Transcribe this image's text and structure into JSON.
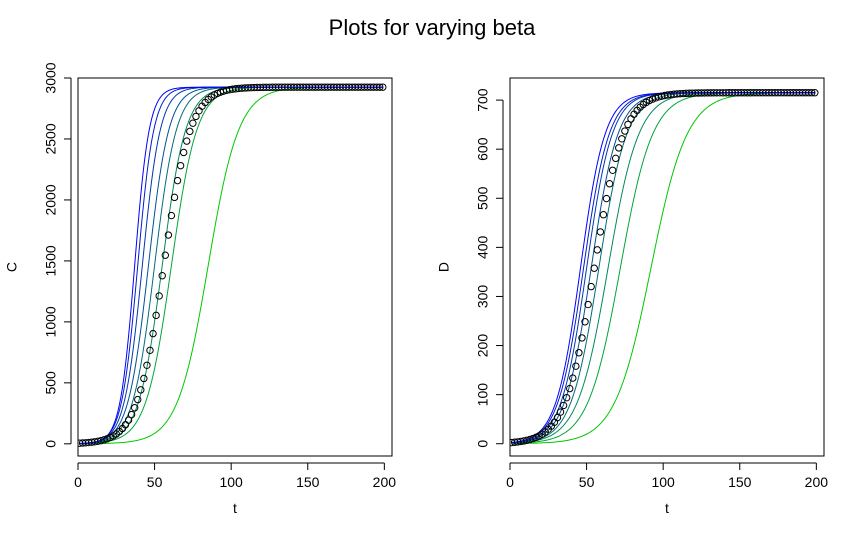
{
  "title": "Plots for varying beta",
  "series_colors": [
    "#00c800",
    "#00a43c",
    "#008a5a",
    "#006c78",
    "#005094",
    "#0036b0",
    "#001ccc",
    "#0000ff"
  ],
  "chart_data": [
    {
      "type": "line",
      "xlabel": "t",
      "ylabel": "C",
      "xlim": [
        0,
        205
      ],
      "ylim": [
        -100,
        3000
      ],
      "x_ticks": [
        0,
        50,
        100,
        150,
        200
      ],
      "y_ticks": [
        0,
        500,
        1000,
        1500,
        2000,
        2500,
        3000
      ],
      "grid": false,
      "curves": {
        "model": "logistic",
        "plateau": 2925,
        "start": 0,
        "t_range": [
          1,
          199
        ],
        "midpoints": [
          85,
          61,
          55,
          50,
          46,
          42,
          39,
          37
        ],
        "slopes": [
          0.1,
          0.12,
          0.13,
          0.14,
          0.15,
          0.17,
          0.19,
          0.21
        ]
      },
      "observed": {
        "marker": "open-circle",
        "x_from": 1,
        "x_to": 199,
        "x_step": 2,
        "plateau": 2925,
        "midpoint": 56,
        "slope": 0.115
      }
    },
    {
      "type": "line",
      "xlabel": "t",
      "ylabel": "D",
      "xlim": [
        0,
        205
      ],
      "ylim": [
        -25,
        745
      ],
      "x_ticks": [
        0,
        50,
        100,
        150,
        200
      ],
      "y_ticks": [
        0,
        100,
        200,
        300,
        400,
        500,
        600,
        700
      ],
      "grid": false,
      "curves": {
        "model": "logistic",
        "plateau": 715,
        "start": 0,
        "t_range": [
          1,
          199
        ],
        "midpoints": [
          92,
          72,
          64,
          58,
          53,
          50,
          48,
          46
        ],
        "slopes": [
          0.085,
          0.095,
          0.1,
          0.11,
          0.115,
          0.12,
          0.12,
          0.125
        ]
      },
      "observed": {
        "marker": "open-circle",
        "x_from": 1,
        "x_to": 199,
        "x_step": 2,
        "plateau": 715,
        "midpoint": 55,
        "slope": 0.105
      }
    }
  ]
}
